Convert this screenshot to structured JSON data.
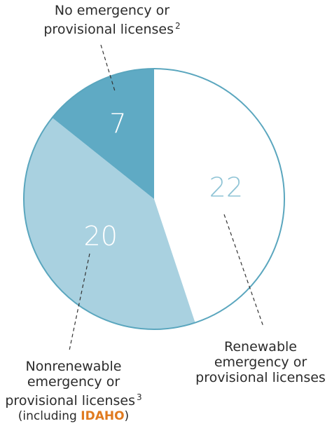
{
  "chart_data": {
    "type": "pie",
    "categories": [
      "Renewable emergency or provisional licenses",
      "Nonrenewable emergency or provisional licenses",
      "No emergency or provisional licenses"
    ],
    "values": [
      22,
      20,
      7
    ],
    "colors": [
      "#ffffff",
      "#a9d1e0",
      "#5faac4"
    ],
    "outline_color": "#5aa6be",
    "value_label_colors": [
      "#8ec3d5",
      "#ffffff",
      "#ffffff"
    ]
  },
  "labels": {
    "no_line1": "No emergency or",
    "no_line2": "provisional licenses",
    "no_note": "2",
    "renew_line1": "Renewable",
    "renew_line2": "emergency or",
    "renew_line3": "provisional licenses",
    "nonrenew_line1": "Nonrenewable",
    "nonrenew_line2": "emergency or",
    "nonrenew_line3": "provisional licenses",
    "nonrenew_note": "3",
    "including_open": "(including ",
    "including_state": "IDAHO",
    "including_close": ")"
  },
  "colors": {
    "highlight": "#e07a1f",
    "text": "#2b2b2b"
  }
}
